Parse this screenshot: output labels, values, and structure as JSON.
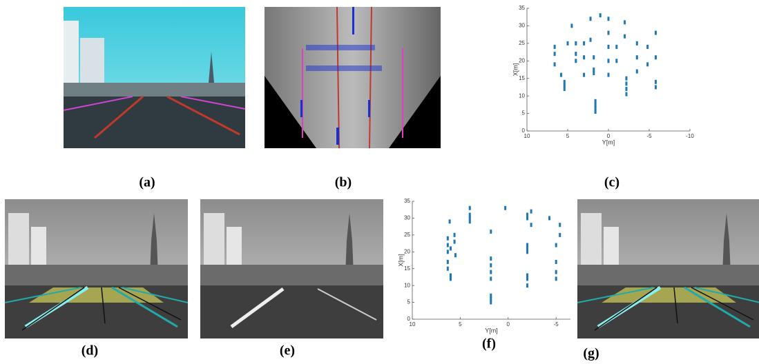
{
  "panel_labels": [
    "(a)",
    "(b)",
    "(c)",
    "(d)",
    "(e)",
    "(f)",
    "(g)"
  ],
  "chart_data": [
    {
      "type": "scatter",
      "xlabel": "Y[m]",
      "ylabel": "X[m]",
      "color": "#1f77b4",
      "xlim": [
        10,
        -10
      ],
      "ylim": [
        0,
        35
      ],
      "xticks": [
        10,
        5,
        0,
        -5,
        -10
      ],
      "yticks": [
        0,
        5,
        10,
        15,
        20,
        25,
        30,
        35
      ],
      "x": [
        1.6,
        1.6,
        1.6,
        1.6,
        5.4,
        5.4,
        5.4,
        -2.2,
        -2.2,
        -2.2,
        -2.2,
        0,
        0,
        0,
        0,
        0,
        1.8,
        1.8,
        1.8,
        4,
        4,
        4,
        6.6,
        6.6,
        6.6,
        3,
        3,
        3,
        -1,
        -1,
        -3.5,
        -3.5,
        -3.5,
        -5.8,
        -5.8,
        -5.8,
        -5.8,
        2.2,
        2.2,
        5,
        5.8,
        -4.8,
        -4.8,
        -2,
        -2,
        4.5,
        1
      ],
      "values": [
        5.5,
        6.5,
        7.5,
        8.5,
        12,
        13,
        14,
        10.5,
        12,
        13.5,
        15,
        16,
        20,
        24,
        28,
        32,
        16.5,
        17.5,
        21,
        20,
        22,
        25,
        19,
        22,
        24,
        16,
        21,
        25,
        20,
        24,
        17,
        21,
        25,
        12.5,
        14,
        21,
        28,
        26,
        32,
        25,
        16,
        19,
        24,
        27,
        31,
        30,
        33
      ]
    },
    {
      "type": "scatter",
      "xlabel": "Y[m]",
      "ylabel": "X[m]",
      "color": "#1f77b4",
      "xlim": [
        10,
        -6.5
      ],
      "ylim": [
        0,
        35
      ],
      "xticks": [
        10,
        5,
        0,
        -5
      ],
      "yticks": [
        0,
        5,
        10,
        15,
        20,
        25,
        30,
        35
      ],
      "x": [
        6.3,
        6.3,
        6.3,
        6.3,
        6.3,
        6,
        6,
        6,
        6.1,
        5.6,
        5.6,
        5.5,
        4,
        4,
        4,
        4,
        1.8,
        1.8,
        1.8,
        1.8,
        1.8,
        1.8,
        1.8,
        1.8,
        -2,
        -2,
        -2,
        -2,
        -2,
        -2,
        -2,
        -2,
        -2.4,
        -2.4,
        -5,
        -5,
        -5,
        -5,
        -5.4,
        -5.4,
        -4.3,
        0.3
      ],
      "values": [
        17,
        20,
        22,
        24,
        15,
        12,
        13,
        21,
        29,
        23,
        25,
        19,
        29,
        30,
        31,
        33,
        5,
        6,
        7,
        12,
        14,
        16,
        18,
        26,
        10,
        12,
        13,
        20,
        21,
        22,
        30,
        31,
        28,
        32,
        12,
        14,
        17,
        22,
        25,
        28,
        30,
        33
      ]
    }
  ]
}
